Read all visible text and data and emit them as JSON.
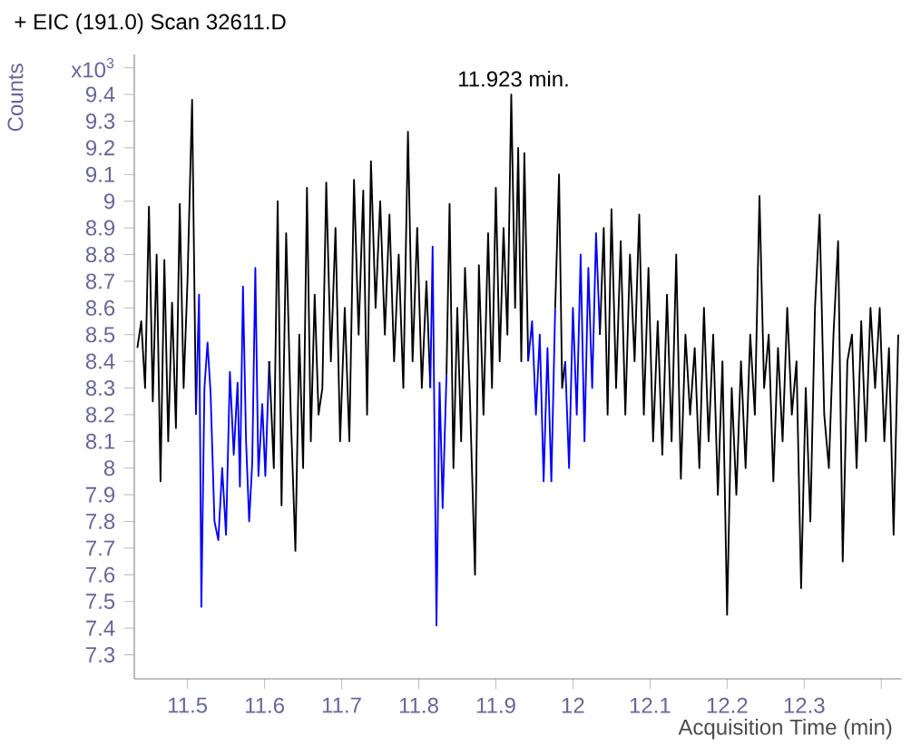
{
  "chart_data": {
    "type": "line",
    "title": "+ EIC (191.0) Scan 32611.D",
    "xlabel": "Acquisition Time (min)",
    "ylabel": "Counts",
    "xlim": [
      11.431,
      12.426
    ],
    "ylim": [
      7.21,
      9.55
    ],
    "xticks": [
      11.5,
      11.6,
      11.7,
      11.8,
      11.9,
      12,
      12.1,
      12.2,
      12.3,
      {
        "value": 12.4,
        "label": null
      }
    ],
    "yticks": [
      7.3,
      7.4,
      7.5,
      7.6,
      7.7,
      7.8,
      7.9,
      8,
      8.1,
      8.2,
      8.3,
      8.4,
      8.5,
      8.6,
      8.7,
      8.8,
      8.9,
      9,
      9.1,
      9.2,
      9.3,
      9.4,
      {
        "value": 9.5,
        "label": "x10$^{3}$"
      }
    ],
    "grid": false,
    "marker": "none",
    "line_style": "solid",
    "annotations": [
      {
        "text": "11.923 min.",
        "x": 11.923,
        "y": 9.4
      }
    ],
    "series": [
      {
        "color": "#000000",
        "x": [
          11.435,
          11.44,
          11.445,
          11.45,
          11.455,
          11.46,
          11.465,
          11.47,
          11.475,
          11.48,
          11.485,
          11.49,
          11.495,
          11.5,
          11.506,
          11.511
        ],
        "values": [
          8.45,
          8.55,
          8.3,
          8.98,
          8.25,
          8.8,
          7.95,
          8.78,
          8.1,
          8.62,
          8.15,
          8.99,
          8.3,
          8.7,
          9.38,
          8.2
        ]
      },
      {
        "color": "#0000ff",
        "x": [
          11.511,
          11.515,
          11.518,
          11.522,
          11.526,
          11.53,
          11.535,
          11.54,
          11.545,
          11.55,
          11.555,
          11.56,
          11.565,
          11.568,
          11.572,
          11.576,
          11.58,
          11.584,
          11.588,
          11.592,
          11.597,
          11.601,
          11.606
        ],
        "values": [
          8.2,
          8.65,
          7.48,
          8.3,
          8.47,
          8.28,
          7.8,
          7.73,
          8.0,
          7.75,
          8.36,
          8.05,
          8.32,
          7.93,
          8.68,
          8.1,
          7.8,
          8.02,
          8.75,
          7.97,
          8.24,
          7.97,
          8.4
        ]
      },
      {
        "color": "#000000",
        "x": [
          11.606,
          11.612,
          11.617,
          11.622,
          11.628,
          11.634,
          11.64,
          11.645,
          11.65,
          11.655,
          11.66,
          11.665,
          11.67,
          11.675,
          11.68,
          11.686,
          11.692,
          11.698,
          11.704,
          11.71,
          11.716,
          11.722,
          11.728,
          11.733,
          11.738,
          11.744,
          11.75,
          11.756,
          11.762,
          11.768,
          11.774,
          11.78,
          11.786,
          11.792,
          11.798,
          11.804,
          11.81,
          11.815
        ],
        "values": [
          8.4,
          8.0,
          9.0,
          7.86,
          8.88,
          8.2,
          7.69,
          8.5,
          8.0,
          9.05,
          8.1,
          8.65,
          8.2,
          8.3,
          9.07,
          8.4,
          8.9,
          8.1,
          8.6,
          8.1,
          9.08,
          8.5,
          9.04,
          8.2,
          9.15,
          8.6,
          9.0,
          8.5,
          8.95,
          8.4,
          8.8,
          8.3,
          9.26,
          8.4,
          8.9,
          8.3,
          8.7,
          8.3
        ]
      },
      {
        "color": "#0000ff",
        "x": [
          11.815,
          11.818,
          11.823,
          11.827,
          11.831,
          11.836
        ],
        "values": [
          8.3,
          8.83,
          7.41,
          8.32,
          7.85,
          8.35
        ]
      },
      {
        "color": "#000000",
        "x": [
          11.836,
          11.84,
          11.845,
          11.85,
          11.855,
          11.86,
          11.866,
          11.873,
          11.878,
          11.884,
          11.89,
          11.895,
          11.9,
          11.905,
          11.91,
          11.915,
          11.92,
          11.925,
          11.929,
          11.933,
          11.937,
          11.942
        ],
        "values": [
          8.35,
          8.99,
          8.0,
          8.6,
          8.1,
          8.75,
          8.3,
          7.6,
          8.76,
          8.2,
          8.88,
          8.3,
          9.05,
          8.4,
          8.9,
          8.5,
          9.4,
          8.6,
          9.2,
          8.4,
          9.18,
          8.4
        ]
      },
      {
        "color": "#0000ff",
        "x": [
          11.942,
          11.947,
          11.952,
          11.957,
          11.962,
          11.967,
          11.972,
          11.977
        ],
        "values": [
          8.4,
          8.55,
          8.2,
          8.5,
          7.95,
          8.45,
          7.95,
          8.6
        ]
      },
      {
        "color": "#000000",
        "x": [
          11.977,
          11.982,
          11.986,
          11.99
        ],
        "values": [
          8.6,
          9.1,
          8.3,
          8.4
        ]
      },
      {
        "color": "#0000ff",
        "x": [
          11.99,
          11.995,
          12.0,
          12.005,
          12.01,
          12.015,
          12.02,
          12.025,
          12.03,
          12.035
        ],
        "values": [
          8.4,
          8.0,
          8.6,
          8.2,
          8.8,
          8.1,
          8.75,
          8.3,
          8.88,
          8.5
        ]
      },
      {
        "color": "#000000",
        "x": [
          12.035,
          12.04,
          12.045,
          12.05,
          12.056,
          12.062,
          12.068,
          12.074,
          12.08,
          12.086,
          12.092,
          12.098,
          12.104,
          12.11,
          12.116,
          12.122,
          12.128,
          12.134,
          12.14,
          12.146,
          12.152,
          12.158,
          12.164,
          12.17,
          12.176,
          12.182,
          12.188,
          12.194,
          12.2,
          12.206,
          12.212,
          12.218,
          12.224,
          12.23,
          12.236,
          12.242,
          12.248,
          12.254,
          12.26,
          12.266,
          12.272,
          12.278,
          12.284,
          12.29,
          12.296,
          12.302,
          12.308,
          12.314,
          12.32,
          12.326,
          12.332,
          12.338,
          12.344,
          12.35,
          12.356,
          12.362,
          12.368,
          12.374,
          12.38,
          12.386,
          12.392,
          12.398,
          12.404,
          12.41,
          12.416,
          12.422
        ],
        "values": [
          8.5,
          8.9,
          8.2,
          8.97,
          8.3,
          8.85,
          8.2,
          8.8,
          8.4,
          8.95,
          8.2,
          8.75,
          8.1,
          8.55,
          8.05,
          8.65,
          8.1,
          8.8,
          7.96,
          8.5,
          8.2,
          8.45,
          8.0,
          8.6,
          8.1,
          8.5,
          7.9,
          8.4,
          7.45,
          8.3,
          7.9,
          8.4,
          8.0,
          8.5,
          8.2,
          9.02,
          8.3,
          8.5,
          7.95,
          8.45,
          8.1,
          8.6,
          8.2,
          8.4,
          7.55,
          8.3,
          7.8,
          8.6,
          8.95,
          8.2,
          8.0,
          8.5,
          8.85,
          7.65,
          8.4,
          8.5,
          8.0,
          8.55,
          8.1,
          8.6,
          8.3,
          8.6,
          8.1,
          8.45,
          7.75,
          8.5
        ]
      }
    ]
  }
}
